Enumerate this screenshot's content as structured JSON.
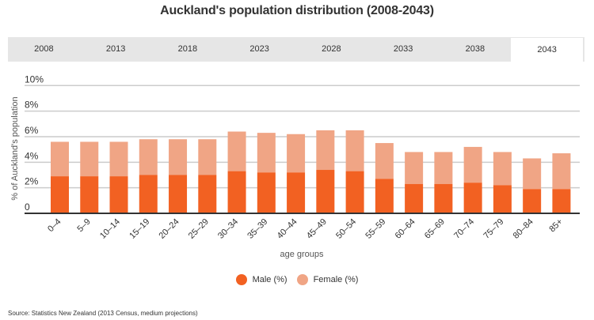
{
  "title": "Auckland's population distribution (2008-2043)",
  "tabs": [
    {
      "label": "2008",
      "active": false
    },
    {
      "label": "2013",
      "active": false
    },
    {
      "label": "2018",
      "active": false
    },
    {
      "label": "2023",
      "active": false
    },
    {
      "label": "2028",
      "active": false
    },
    {
      "label": "2033",
      "active": false
    },
    {
      "label": "2038",
      "active": false
    },
    {
      "label": "2043",
      "active": true
    }
  ],
  "legend": {
    "male_label": "Male (%)",
    "female_label": "Female (%)"
  },
  "source": "Source: Statistics New Zealand (2013 Census, medium projections)",
  "colors": {
    "male": "#f26122",
    "female": "#f0a585",
    "grid": "#cccccc",
    "axis": "#333333",
    "tab_bg": "#e6e6e6"
  },
  "chart_data": {
    "type": "bar",
    "stacked": true,
    "title": "Auckland's population distribution (2008-2043)",
    "selected_year": "2043",
    "xlabel": "age groups",
    "ylabel": "% of Auckland's population",
    "ylim": [
      0,
      10
    ],
    "yticks": [
      0,
      2,
      4,
      6,
      8,
      10
    ],
    "ytick_labels": [
      "0",
      "2%",
      "4%",
      "6%",
      "8%",
      "10%"
    ],
    "grid": true,
    "legend_position": "bottom",
    "categories": [
      "0–4",
      "5–9",
      "10–14",
      "15–19",
      "20–24",
      "25–29",
      "30–34",
      "35–39",
      "40–44",
      "45–49",
      "50–54",
      "55–59",
      "60–64",
      "65–69",
      "70–74",
      "75–79",
      "80–84",
      "85+"
    ],
    "series": [
      {
        "name": "Male (%)",
        "values": [
          2.9,
          2.9,
          2.9,
          3.0,
          3.0,
          3.0,
          3.3,
          3.2,
          3.2,
          3.4,
          3.3,
          2.7,
          2.3,
          2.3,
          2.4,
          2.2,
          1.9,
          1.9
        ]
      },
      {
        "name": "Female (%)",
        "values": [
          2.7,
          2.7,
          2.7,
          2.8,
          2.8,
          2.8,
          3.1,
          3.1,
          3.0,
          3.1,
          3.2,
          2.8,
          2.5,
          2.5,
          2.8,
          2.6,
          2.4,
          2.8
        ]
      }
    ]
  }
}
